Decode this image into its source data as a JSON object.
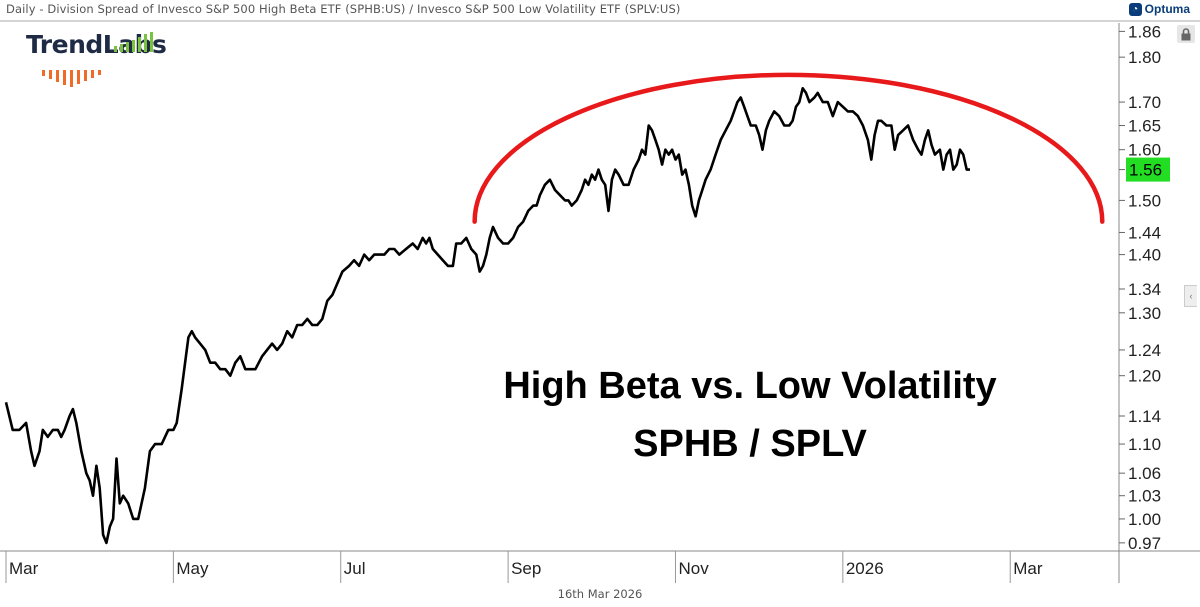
{
  "header": {
    "title": "Daily - Division Spread of Invesco S&P 500 High Beta ETF (SPHB:US) / Invesco S&P 500 Low Volatility ETF (SPLV:US)",
    "brand": "Optuma"
  },
  "logo": {
    "name_part1": "Trend",
    "name_part2": "Labs"
  },
  "annotation": {
    "line1": "High Beta vs. Low Volatility",
    "line2": "SPHB / SPLV"
  },
  "footer": {
    "date": "16th Mar 2026"
  },
  "colors": {
    "line": "#000000",
    "arc": "#e8191b",
    "last_label_bg": "#22dd22",
    "axis": "#444444"
  },
  "chart_data": {
    "type": "line",
    "title": "Daily - Division Spread of Invesco S&P 500 High Beta ETF (SPHB:US) / Invesco S&P 500 Low Volatility ETF (SPLV:US)",
    "xlabel": "",
    "ylabel": "",
    "scale": "log",
    "ylim": [
      0.96,
      1.88
    ],
    "x_range_months": [
      0.0,
      13.3
    ],
    "x_tick_labels": [
      {
        "label": "Mar",
        "month": 0.0
      },
      {
        "label": "May",
        "month": 2.0
      },
      {
        "label": "Jul",
        "month": 4.0
      },
      {
        "label": "Sep",
        "month": 6.0
      },
      {
        "label": "Nov",
        "month": 8.0
      },
      {
        "label": "2026",
        "month": 10.0
      },
      {
        "label": "Mar",
        "month": 12.0
      }
    ],
    "y_ticks": [
      0.97,
      1.0,
      1.03,
      1.06,
      1.1,
      1.14,
      1.2,
      1.24,
      1.3,
      1.34,
      1.4,
      1.44,
      1.5,
      1.56,
      1.6,
      1.65,
      1.7,
      1.8,
      1.86
    ],
    "y_tick_labels": [
      "0.97",
      "1.00",
      "1.03",
      "1.06",
      "1.10",
      "1.14",
      "1.20",
      "1.24",
      "1.30",
      "1.34",
      "1.40",
      "1.44",
      "1.50",
      "1.56",
      "1.60",
      "1.65",
      "1.70",
      "1.80",
      "1.86"
    ],
    "last_value": 1.56,
    "last_value_label": "1.56",
    "series": [
      {
        "name": "SPHB/SPLV",
        "points": [
          [
            0.0,
            1.16
          ],
          [
            0.08,
            1.12
          ],
          [
            0.16,
            1.12
          ],
          [
            0.24,
            1.13
          ],
          [
            0.3,
            1.09
          ],
          [
            0.34,
            1.07
          ],
          [
            0.4,
            1.09
          ],
          [
            0.44,
            1.12
          ],
          [
            0.5,
            1.11
          ],
          [
            0.56,
            1.12
          ],
          [
            0.62,
            1.12
          ],
          [
            0.66,
            1.11
          ],
          [
            0.7,
            1.12
          ],
          [
            0.76,
            1.14
          ],
          [
            0.8,
            1.15
          ],
          [
            0.84,
            1.13
          ],
          [
            0.9,
            1.09
          ],
          [
            0.96,
            1.06
          ],
          [
            1.0,
            1.05
          ],
          [
            1.04,
            1.03
          ],
          [
            1.08,
            1.07
          ],
          [
            1.12,
            1.04
          ],
          [
            1.16,
            0.98
          ],
          [
            1.2,
            0.97
          ],
          [
            1.24,
            0.99
          ],
          [
            1.28,
            1.0
          ],
          [
            1.32,
            1.08
          ],
          [
            1.36,
            1.02
          ],
          [
            1.4,
            1.03
          ],
          [
            1.46,
            1.02
          ],
          [
            1.52,
            1.0
          ],
          [
            1.58,
            1.0
          ],
          [
            1.66,
            1.04
          ],
          [
            1.72,
            1.09
          ],
          [
            1.78,
            1.1
          ],
          [
            1.86,
            1.1
          ],
          [
            1.94,
            1.12
          ],
          [
            2.0,
            1.12
          ],
          [
            2.04,
            1.13
          ],
          [
            2.1,
            1.18
          ],
          [
            2.14,
            1.22
          ],
          [
            2.18,
            1.26
          ],
          [
            2.22,
            1.27
          ],
          [
            2.26,
            1.26
          ],
          [
            2.32,
            1.25
          ],
          [
            2.38,
            1.24
          ],
          [
            2.44,
            1.22
          ],
          [
            2.5,
            1.22
          ],
          [
            2.56,
            1.21
          ],
          [
            2.62,
            1.21
          ],
          [
            2.68,
            1.2
          ],
          [
            2.74,
            1.22
          ],
          [
            2.8,
            1.23
          ],
          [
            2.86,
            1.21
          ],
          [
            2.92,
            1.21
          ],
          [
            2.98,
            1.21
          ],
          [
            3.06,
            1.23
          ],
          [
            3.12,
            1.24
          ],
          [
            3.18,
            1.25
          ],
          [
            3.24,
            1.24
          ],
          [
            3.3,
            1.25
          ],
          [
            3.36,
            1.27
          ],
          [
            3.42,
            1.26
          ],
          [
            3.48,
            1.28
          ],
          [
            3.54,
            1.28
          ],
          [
            3.6,
            1.29
          ],
          [
            3.66,
            1.28
          ],
          [
            3.72,
            1.28
          ],
          [
            3.78,
            1.29
          ],
          [
            3.84,
            1.32
          ],
          [
            3.9,
            1.33
          ],
          [
            3.96,
            1.35
          ],
          [
            4.02,
            1.37
          ],
          [
            4.1,
            1.38
          ],
          [
            4.16,
            1.39
          ],
          [
            4.22,
            1.38
          ],
          [
            4.28,
            1.4
          ],
          [
            4.34,
            1.39
          ],
          [
            4.4,
            1.4
          ],
          [
            4.46,
            1.4
          ],
          [
            4.52,
            1.4
          ],
          [
            4.58,
            1.41
          ],
          [
            4.64,
            1.41
          ],
          [
            4.7,
            1.4
          ],
          [
            4.78,
            1.41
          ],
          [
            4.86,
            1.42
          ],
          [
            4.92,
            1.41
          ],
          [
            4.98,
            1.43
          ],
          [
            5.02,
            1.42
          ],
          [
            5.06,
            1.43
          ],
          [
            5.1,
            1.41
          ],
          [
            5.16,
            1.4
          ],
          [
            5.22,
            1.39
          ],
          [
            5.28,
            1.38
          ],
          [
            5.34,
            1.38
          ],
          [
            5.38,
            1.42
          ],
          [
            5.44,
            1.42
          ],
          [
            5.5,
            1.43
          ],
          [
            5.56,
            1.41
          ],
          [
            5.62,
            1.4
          ],
          [
            5.66,
            1.37
          ],
          [
            5.7,
            1.38
          ],
          [
            5.74,
            1.4
          ],
          [
            5.78,
            1.43
          ],
          [
            5.82,
            1.45
          ],
          [
            5.88,
            1.43
          ],
          [
            5.94,
            1.42
          ],
          [
            6.0,
            1.42
          ],
          [
            6.06,
            1.43
          ],
          [
            6.12,
            1.45
          ],
          [
            6.18,
            1.46
          ],
          [
            6.24,
            1.48
          ],
          [
            6.3,
            1.49
          ],
          [
            6.34,
            1.49
          ],
          [
            6.38,
            1.51
          ],
          [
            6.44,
            1.53
          ],
          [
            6.5,
            1.54
          ],
          [
            6.56,
            1.52
          ],
          [
            6.62,
            1.51
          ],
          [
            6.68,
            1.5
          ],
          [
            6.72,
            1.5
          ],
          [
            6.76,
            1.49
          ],
          [
            6.82,
            1.5
          ],
          [
            6.88,
            1.52
          ],
          [
            6.92,
            1.54
          ],
          [
            6.96,
            1.53
          ],
          [
            7.0,
            1.55
          ],
          [
            7.04,
            1.54
          ],
          [
            7.08,
            1.56
          ],
          [
            7.12,
            1.54
          ],
          [
            7.16,
            1.53
          ],
          [
            7.2,
            1.48
          ],
          [
            7.24,
            1.54
          ],
          [
            7.28,
            1.56
          ],
          [
            7.32,
            1.55
          ],
          [
            7.38,
            1.53
          ],
          [
            7.44,
            1.53
          ],
          [
            7.5,
            1.56
          ],
          [
            7.56,
            1.58
          ],
          [
            7.6,
            1.6
          ],
          [
            7.64,
            1.59
          ],
          [
            7.68,
            1.65
          ],
          [
            7.72,
            1.64
          ],
          [
            7.76,
            1.62
          ],
          [
            7.8,
            1.6
          ],
          [
            7.84,
            1.57
          ],
          [
            7.88,
            1.6
          ],
          [
            7.92,
            1.59
          ],
          [
            7.96,
            1.6
          ],
          [
            8.0,
            1.58
          ],
          [
            8.04,
            1.59
          ],
          [
            8.08,
            1.55
          ],
          [
            8.12,
            1.56
          ],
          [
            8.16,
            1.53
          ],
          [
            8.2,
            1.49
          ],
          [
            8.24,
            1.47
          ],
          [
            8.28,
            1.5
          ],
          [
            8.32,
            1.52
          ],
          [
            8.36,
            1.54
          ],
          [
            8.42,
            1.56
          ],
          [
            8.48,
            1.59
          ],
          [
            8.54,
            1.62
          ],
          [
            8.6,
            1.64
          ],
          [
            8.66,
            1.66
          ],
          [
            8.7,
            1.68
          ],
          [
            8.74,
            1.7
          ],
          [
            8.78,
            1.71
          ],
          [
            8.82,
            1.69
          ],
          [
            8.86,
            1.67
          ],
          [
            8.9,
            1.65
          ],
          [
            8.96,
            1.65
          ],
          [
            9.0,
            1.63
          ],
          [
            9.04,
            1.6
          ],
          [
            9.08,
            1.64
          ],
          [
            9.12,
            1.66
          ],
          [
            9.18,
            1.68
          ],
          [
            9.24,
            1.67
          ],
          [
            9.3,
            1.65
          ],
          [
            9.36,
            1.65
          ],
          [
            9.4,
            1.66
          ],
          [
            9.44,
            1.69
          ],
          [
            9.48,
            1.7
          ],
          [
            9.52,
            1.73
          ],
          [
            9.56,
            1.72
          ],
          [
            9.6,
            1.7
          ],
          [
            9.66,
            1.71
          ],
          [
            9.7,
            1.72
          ],
          [
            9.76,
            1.7
          ],
          [
            9.82,
            1.7
          ],
          [
            9.88,
            1.67
          ],
          [
            9.94,
            1.7
          ],
          [
            10.0,
            1.69
          ],
          [
            10.06,
            1.68
          ],
          [
            10.12,
            1.68
          ],
          [
            10.18,
            1.67
          ],
          [
            10.24,
            1.65
          ],
          [
            10.3,
            1.62
          ],
          [
            10.34,
            1.58
          ],
          [
            10.38,
            1.63
          ],
          [
            10.42,
            1.66
          ],
          [
            10.46,
            1.66
          ],
          [
            10.52,
            1.65
          ],
          [
            10.58,
            1.65
          ],
          [
            10.62,
            1.6
          ],
          [
            10.66,
            1.63
          ],
          [
            10.72,
            1.64
          ],
          [
            10.78,
            1.65
          ],
          [
            10.84,
            1.62
          ],
          [
            10.9,
            1.6
          ],
          [
            10.94,
            1.59
          ],
          [
            10.98,
            1.62
          ],
          [
            11.02,
            1.64
          ],
          [
            11.06,
            1.61
          ],
          [
            11.1,
            1.59
          ],
          [
            11.16,
            1.6
          ],
          [
            11.2,
            1.56
          ],
          [
            11.24,
            1.59
          ],
          [
            11.28,
            1.6
          ],
          [
            11.32,
            1.56
          ],
          [
            11.36,
            1.57
          ],
          [
            11.4,
            1.6
          ],
          [
            11.44,
            1.59
          ],
          [
            11.48,
            1.56
          ],
          [
            11.52,
            1.56
          ]
        ]
      }
    ],
    "annotations": [
      "High Beta vs. Low Volatility",
      "SPHB / SPLV"
    ],
    "overlay": {
      "type": "rounding-top arc",
      "start": [
        5.6,
        1.46
      ],
      "peak": [
        9.4,
        1.76
      ],
      "end": [
        13.1,
        1.46
      ]
    }
  }
}
